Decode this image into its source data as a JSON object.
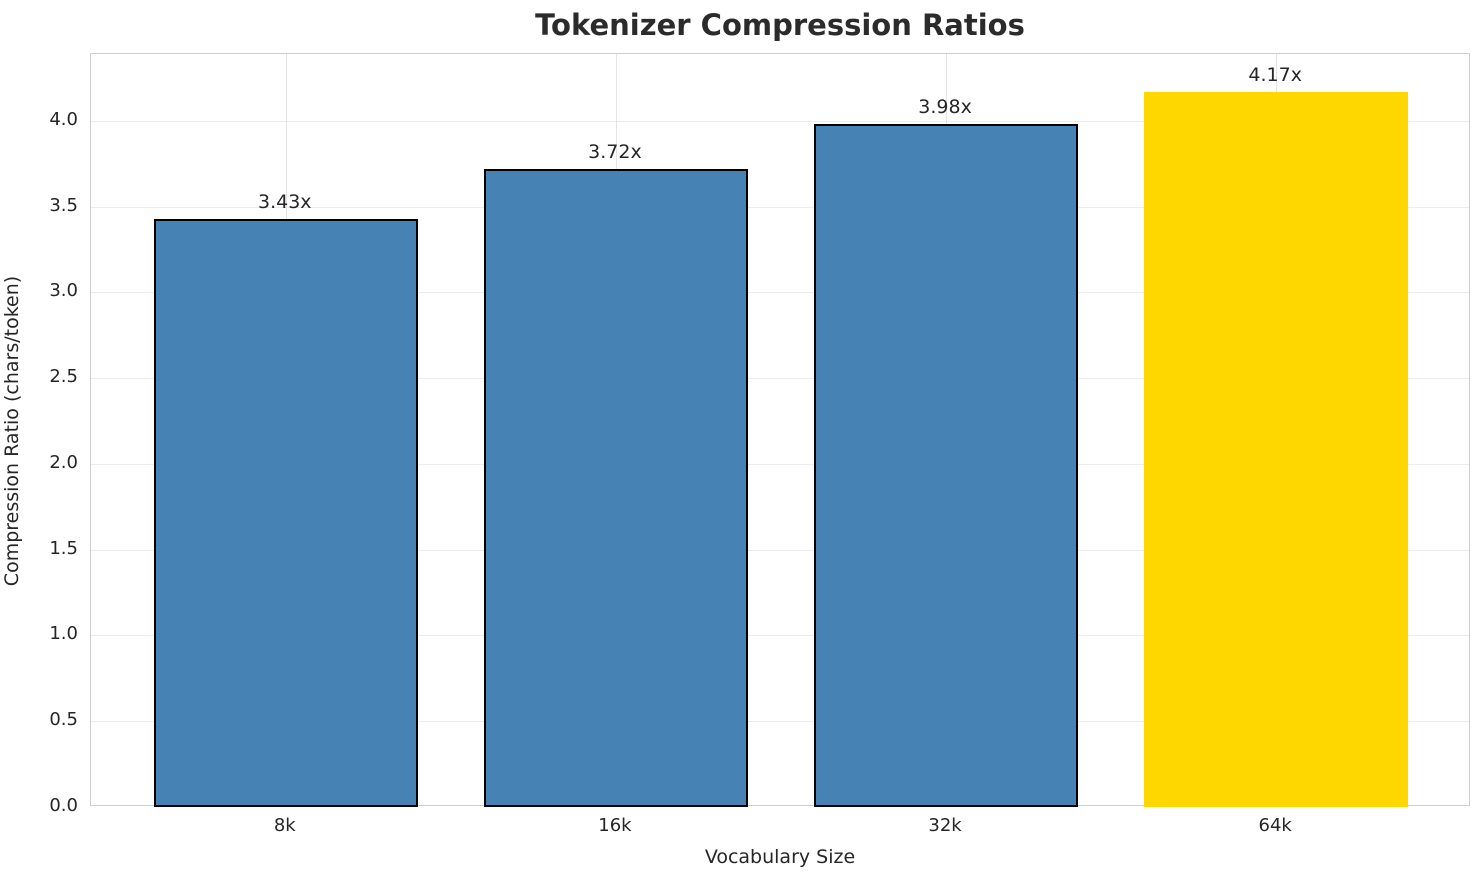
{
  "chart_data": {
    "type": "bar",
    "title": "Tokenizer Compression Ratios",
    "xlabel": "Vocabulary Size",
    "ylabel": "Compression Ratio (chars/token)",
    "categories": [
      "8k",
      "16k",
      "32k",
      "64k"
    ],
    "values": [
      3.43,
      3.72,
      3.98,
      4.17
    ],
    "bar_labels": [
      "3.43x",
      "3.72x",
      "3.98x",
      "4.17x"
    ],
    "bar_colors": [
      "#4682B4",
      "#4682B4",
      "#4682B4",
      "#FFD700"
    ],
    "bar_edge_colors": [
      "#000000",
      "#000000",
      "#000000",
      "none"
    ],
    "highlight_index": 3,
    "ylim": [
      0,
      4.39
    ],
    "yticks": [
      0,
      0.5,
      1,
      1.5,
      2,
      2.5,
      3,
      3.5,
      4
    ],
    "ytick_labels": [
      "0.0",
      "0.5",
      "1.0",
      "1.5",
      "2.0",
      "2.5",
      "3.0",
      "3.5",
      "4.0"
    ],
    "xlim": [
      -0.59,
      3.59
    ],
    "bar_width": 0.8,
    "grid": true,
    "legend": "none",
    "colors": {
      "background": "#ffffff",
      "spine": "#cfcfcf",
      "grid_h": "#ececec",
      "grid_v": "#e4e4e4",
      "text": "#262626",
      "title": "#2b2b2b",
      "bar_main": "#4682B4",
      "bar_highlight": "#FFD700"
    }
  }
}
